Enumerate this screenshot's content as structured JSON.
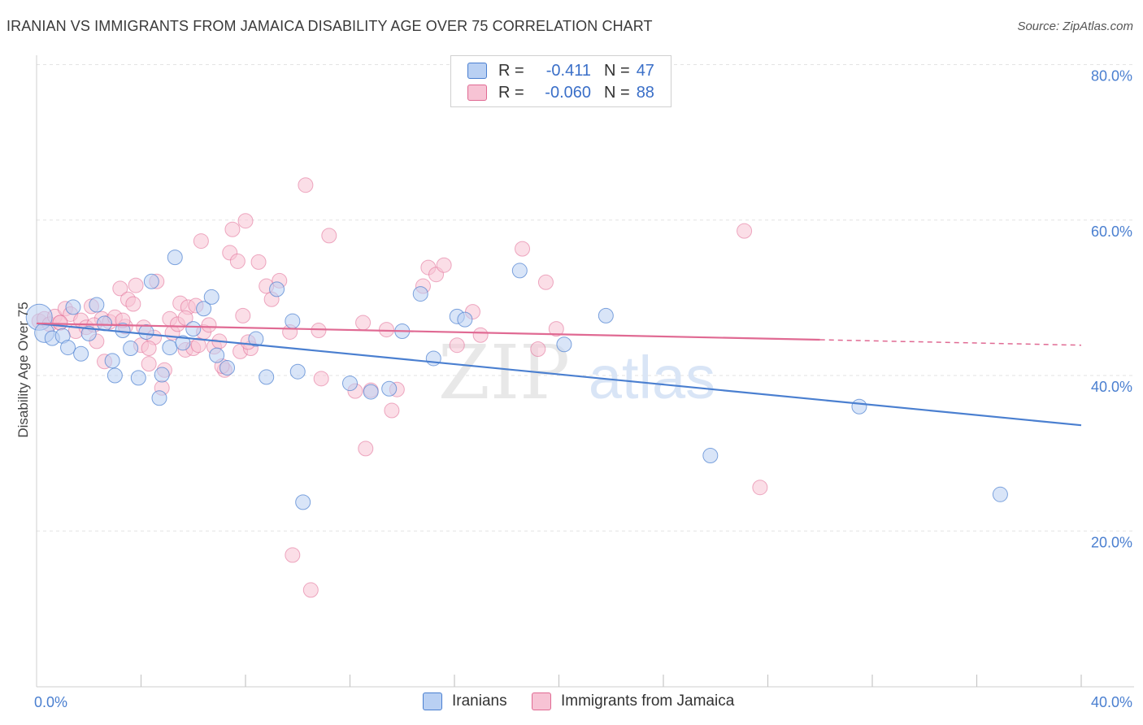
{
  "header": {
    "title": "IRANIAN VS IMMIGRANTS FROM JAMAICA DISABILITY AGE OVER 75 CORRELATION CHART",
    "source": "Source: ZipAtlas.com"
  },
  "colors": {
    "blue": "#4a7fd0",
    "blue_fill": "#b9d0f3",
    "pink": "#e06a93",
    "pink_fill": "#f7c3d4",
    "grid": "#e3e3e3"
  },
  "legend": {
    "rows": [
      {
        "r_label": "R =",
        "r_value": "-0.411",
        "n_label": "N =",
        "n_value": "47"
      },
      {
        "r_label": "R =",
        "r_value": "-0.060",
        "n_label": "N =",
        "n_value": "88"
      }
    ]
  },
  "bottom_legend": {
    "items": [
      "Iranians",
      "Immigrants from Jamaica"
    ]
  },
  "watermark": {
    "zip": "ZIP",
    "atlas": "atlas"
  },
  "chart_data": {
    "type": "scatter",
    "title": "IRANIAN VS IMMIGRANTS FROM JAMAICA DISABILITY AGE OVER 75 CORRELATION CHART",
    "xlabel": "",
    "ylabel": "Disability Age Over 75",
    "xlim": [
      0,
      40
    ],
    "ylim": [
      0,
      82
    ],
    "x_tick_labels": [
      "0.0%",
      "40.0%"
    ],
    "y_ticks": [
      20,
      40,
      60,
      80
    ],
    "y_tick_labels": [
      "20.0%",
      "40.0%",
      "60.0%",
      "80.0%"
    ],
    "legend_position": "top-center",
    "series": [
      {
        "name": "Iranians",
        "color": "#4a7fd0",
        "trend": {
          "x0": 0,
          "y0": 46.7,
          "x1": 40,
          "y1": 33.6,
          "dashed_from": null
        },
        "points": [
          [
            0.1,
            47.5
          ],
          [
            0.3,
            45.5
          ],
          [
            0.6,
            44.8
          ],
          [
            1.0,
            45.1
          ],
          [
            1.2,
            43.6
          ],
          [
            1.4,
            48.8
          ],
          [
            1.7,
            42.8
          ],
          [
            2.0,
            45.4
          ],
          [
            2.3,
            49.1
          ],
          [
            2.6,
            46.7
          ],
          [
            2.9,
            41.9
          ],
          [
            3.0,
            40.0
          ],
          [
            3.3,
            45.8
          ],
          [
            3.6,
            43.5
          ],
          [
            3.9,
            39.7
          ],
          [
            4.2,
            45.6
          ],
          [
            4.4,
            52.1
          ],
          [
            4.7,
            37.1
          ],
          [
            4.8,
            40.1
          ],
          [
            5.1,
            43.6
          ],
          [
            5.3,
            55.2
          ],
          [
            5.6,
            44.2
          ],
          [
            6.0,
            46.0
          ],
          [
            6.4,
            48.6
          ],
          [
            6.7,
            50.1
          ],
          [
            6.9,
            42.6
          ],
          [
            7.3,
            41.0
          ],
          [
            8.4,
            44.7
          ],
          [
            8.8,
            39.8
          ],
          [
            9.2,
            51.1
          ],
          [
            9.8,
            47.0
          ],
          [
            10.0,
            40.5
          ],
          [
            10.2,
            23.7
          ],
          [
            12.0,
            39.0
          ],
          [
            12.8,
            37.9
          ],
          [
            13.5,
            38.3
          ],
          [
            14.0,
            45.7
          ],
          [
            14.7,
            50.5
          ],
          [
            15.2,
            42.2
          ],
          [
            16.1,
            47.6
          ],
          [
            16.4,
            47.2
          ],
          [
            18.5,
            53.5
          ],
          [
            20.2,
            44.0
          ],
          [
            21.8,
            47.7
          ],
          [
            25.8,
            29.7
          ],
          [
            31.5,
            36.0
          ],
          [
            36.9,
            24.7
          ]
        ]
      },
      {
        "name": "Immigrants from Jamaica",
        "color": "#e06a93",
        "trend": {
          "x0": 0,
          "y0": 46.7,
          "x1": 40,
          "y1": 43.9,
          "dashed_from": 30
        },
        "points": [
          [
            0.1,
            47.0
          ],
          [
            0.3,
            47.3
          ],
          [
            0.5,
            46.6
          ],
          [
            0.7,
            47.6
          ],
          [
            0.9,
            46.8
          ],
          [
            1.1,
            48.6
          ],
          [
            1.3,
            47.9
          ],
          [
            1.5,
            45.7
          ],
          [
            1.7,
            47.1
          ],
          [
            1.9,
            46.2
          ],
          [
            2.1,
            48.9
          ],
          [
            2.3,
            44.4
          ],
          [
            2.5,
            47.3
          ],
          [
            2.6,
            41.8
          ],
          [
            2.8,
            46.9
          ],
          [
            3.0,
            47.5
          ],
          [
            3.2,
            51.2
          ],
          [
            3.4,
            46.3
          ],
          [
            3.5,
            49.8
          ],
          [
            3.7,
            49.2
          ],
          [
            3.8,
            51.6
          ],
          [
            4.0,
            43.9
          ],
          [
            4.1,
            46.2
          ],
          [
            4.3,
            41.5
          ],
          [
            4.5,
            44.9
          ],
          [
            4.6,
            52.1
          ],
          [
            4.8,
            38.4
          ],
          [
            4.9,
            40.7
          ],
          [
            5.1,
            47.3
          ],
          [
            5.2,
            45.5
          ],
          [
            5.4,
            46.6
          ],
          [
            5.5,
            49.3
          ],
          [
            5.7,
            43.3
          ],
          [
            5.8,
            48.8
          ],
          [
            6.0,
            43.5
          ],
          [
            6.1,
            49.0
          ],
          [
            6.3,
            57.3
          ],
          [
            6.4,
            45.6
          ],
          [
            6.6,
            46.5
          ],
          [
            6.8,
            43.7
          ],
          [
            7.0,
            44.4
          ],
          [
            7.2,
            40.7
          ],
          [
            7.4,
            55.8
          ],
          [
            7.5,
            58.8
          ],
          [
            7.7,
            54.7
          ],
          [
            7.8,
            43.1
          ],
          [
            7.9,
            47.7
          ],
          [
            8.0,
            59.9
          ],
          [
            8.2,
            43.5
          ],
          [
            8.5,
            54.6
          ],
          [
            8.8,
            51.5
          ],
          [
            9.0,
            49.8
          ],
          [
            9.3,
            52.2
          ],
          [
            9.7,
            45.6
          ],
          [
            9.8,
            16.9
          ],
          [
            10.3,
            64.5
          ],
          [
            10.5,
            12.4
          ],
          [
            10.8,
            45.8
          ],
          [
            10.9,
            39.6
          ],
          [
            11.2,
            58.0
          ],
          [
            12.5,
            46.8
          ],
          [
            12.6,
            30.6
          ],
          [
            12.8,
            38.1
          ],
          [
            13.4,
            45.9
          ],
          [
            13.6,
            35.5
          ],
          [
            13.8,
            38.2
          ],
          [
            14.8,
            51.5
          ],
          [
            15.0,
            53.9
          ],
          [
            15.3,
            53.0
          ],
          [
            15.6,
            54.2
          ],
          [
            16.1,
            43.9
          ],
          [
            16.7,
            48.2
          ],
          [
            17.0,
            45.2
          ],
          [
            18.6,
            56.3
          ],
          [
            19.2,
            43.4
          ],
          [
            19.5,
            52.0
          ],
          [
            19.9,
            46.0
          ],
          [
            27.1,
            58.6
          ],
          [
            27.7,
            25.6
          ],
          [
            0.9,
            46.8
          ],
          [
            2.2,
            46.5
          ],
          [
            3.3,
            47.1
          ],
          [
            4.3,
            43.5
          ],
          [
            5.7,
            47.4
          ],
          [
            6.2,
            43.9
          ],
          [
            7.1,
            41.2
          ],
          [
            8.1,
            44.3
          ],
          [
            12.2,
            38.0
          ]
        ]
      }
    ]
  }
}
